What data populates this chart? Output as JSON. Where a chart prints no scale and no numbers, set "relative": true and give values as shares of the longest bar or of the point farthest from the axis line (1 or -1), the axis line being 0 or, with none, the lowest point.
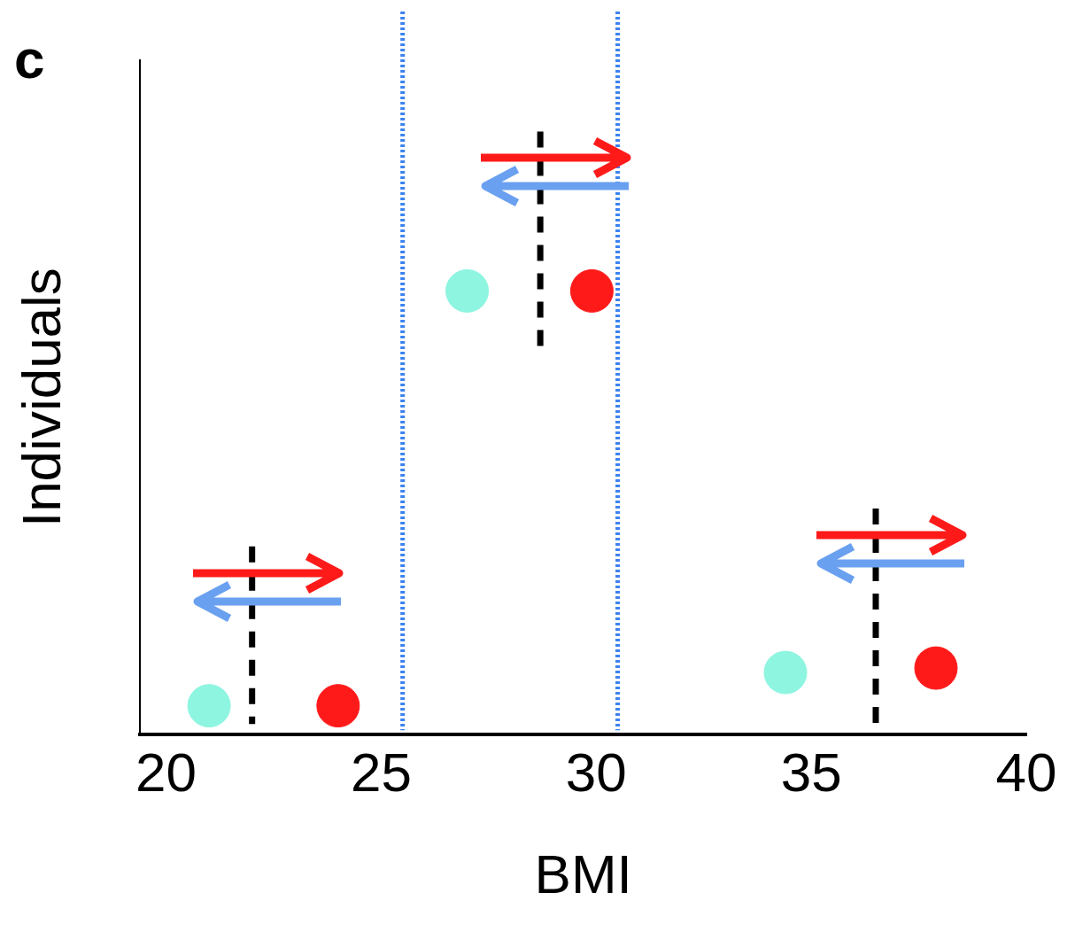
{
  "chart_data": {
    "type": "scatter",
    "relative": true,
    "xlabel": "BMI",
    "ylabel": "Individuals",
    "annotations": [
      "c"
    ],
    "xlim": [
      19.4,
      40
    ],
    "xticks": [
      20,
      25,
      30,
      35,
      40
    ],
    "grid": false,
    "legend": false,
    "marker": "circle",
    "series": [
      {
        "color": "#8ef5e0",
        "x": [
          21.0,
          27.0,
          34.4
        ],
        "values": [
          0.065,
          1,
          0.14
        ]
      },
      {
        "color": "#ff1a1a",
        "x": [
          24.0,
          29.9,
          37.9
        ],
        "values": [
          0.065,
          1,
          0.15
        ]
      }
    ],
    "ref_lines": [
      {
        "axis": "x",
        "value": 22.0,
        "color": "#000000",
        "line_style": "dashed"
      },
      {
        "axis": "x",
        "value": 28.7,
        "color": "#000000",
        "line_style": "dashed"
      },
      {
        "axis": "x",
        "value": 36.5,
        "color": "#000000",
        "line_style": "dashed"
      },
      {
        "axis": "x",
        "value": 25.5,
        "color": "#3b82f0",
        "line_style": "dotted"
      },
      {
        "axis": "x",
        "value": 30.5,
        "color": "#3b82f0",
        "line_style": "dotted"
      }
    ]
  }
}
